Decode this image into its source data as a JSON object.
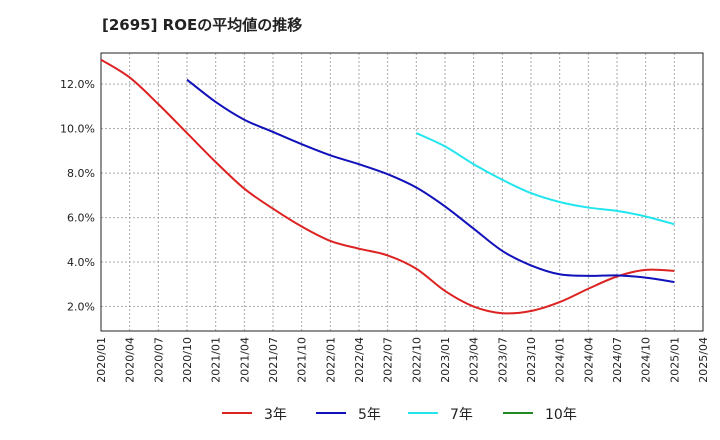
{
  "chart_data": {
    "type": "line",
    "title": "[2695]  ROEの平均値の推移",
    "xlabel": "",
    "ylabel": "",
    "ylim": [
      0.9,
      13.4
    ],
    "grid": true,
    "legend_position": "bottom",
    "y_ticks": [
      {
        "value": 2,
        "label": "2.0%"
      },
      {
        "value": 4,
        "label": "4.0%"
      },
      {
        "value": 6,
        "label": "6.0%"
      },
      {
        "value": 8,
        "label": "8.0%"
      },
      {
        "value": 10,
        "label": "10.0%"
      },
      {
        "value": 12,
        "label": "12.0%"
      }
    ],
    "x_ticks": [
      "2020/01",
      "2020/04",
      "2020/07",
      "2020/10",
      "2021/01",
      "2021/04",
      "2021/07",
      "2021/10",
      "2022/01",
      "2022/04",
      "2022/07",
      "2022/10",
      "2023/01",
      "2023/04",
      "2023/07",
      "2023/10",
      "2024/01",
      "2024/04",
      "2024/07",
      "2024/10",
      "2025/01",
      "2025/04"
    ],
    "series": [
      {
        "name": "3年",
        "color": "#dd2222",
        "points": [
          {
            "x": "2020/01",
            "y": 13.1
          },
          {
            "x": "2020/04",
            "y": 12.3
          },
          {
            "x": "2020/07",
            "y": 11.1
          },
          {
            "x": "2020/10",
            "y": 9.8
          },
          {
            "x": "2021/01",
            "y": 8.5
          },
          {
            "x": "2021/04",
            "y": 7.3
          },
          {
            "x": "2021/07",
            "y": 6.4
          },
          {
            "x": "2021/10",
            "y": 5.6
          },
          {
            "x": "2022/01",
            "y": 4.95
          },
          {
            "x": "2022/04",
            "y": 4.6
          },
          {
            "x": "2022/07",
            "y": 4.3
          },
          {
            "x": "2022/10",
            "y": 3.7
          },
          {
            "x": "2023/01",
            "y": 2.7
          },
          {
            "x": "2023/04",
            "y": 2.0
          },
          {
            "x": "2023/07",
            "y": 1.7
          },
          {
            "x": "2023/10",
            "y": 1.8
          },
          {
            "x": "2024/01",
            "y": 2.2
          },
          {
            "x": "2024/04",
            "y": 2.8
          },
          {
            "x": "2024/07",
            "y": 3.35
          },
          {
            "x": "2024/10",
            "y": 3.65
          },
          {
            "x": "2025/01",
            "y": 3.6
          }
        ]
      },
      {
        "name": "5年",
        "color": "#1111bb",
        "points": [
          {
            "x": "2020/10",
            "y": 12.2
          },
          {
            "x": "2021/01",
            "y": 11.2
          },
          {
            "x": "2021/04",
            "y": 10.4
          },
          {
            "x": "2021/07",
            "y": 9.85
          },
          {
            "x": "2021/10",
            "y": 9.3
          },
          {
            "x": "2022/01",
            "y": 8.8
          },
          {
            "x": "2022/04",
            "y": 8.4
          },
          {
            "x": "2022/07",
            "y": 7.95
          },
          {
            "x": "2022/10",
            "y": 7.35
          },
          {
            "x": "2023/01",
            "y": 6.5
          },
          {
            "x": "2023/04",
            "y": 5.5
          },
          {
            "x": "2023/07",
            "y": 4.5
          },
          {
            "x": "2023/10",
            "y": 3.85
          },
          {
            "x": "2024/01",
            "y": 3.45
          },
          {
            "x": "2024/04",
            "y": 3.38
          },
          {
            "x": "2024/07",
            "y": 3.4
          },
          {
            "x": "2024/10",
            "y": 3.3
          },
          {
            "x": "2025/01",
            "y": 3.1
          }
        ]
      },
      {
        "name": "7年",
        "color": "#22e5ee",
        "points": [
          {
            "x": "2022/10",
            "y": 9.8
          },
          {
            "x": "2023/01",
            "y": 9.2
          },
          {
            "x": "2023/04",
            "y": 8.4
          },
          {
            "x": "2023/07",
            "y": 7.7
          },
          {
            "x": "2023/10",
            "y": 7.1
          },
          {
            "x": "2024/01",
            "y": 6.7
          },
          {
            "x": "2024/04",
            "y": 6.45
          },
          {
            "x": "2024/07",
            "y": 6.3
          },
          {
            "x": "2024/10",
            "y": 6.05
          },
          {
            "x": "2025/01",
            "y": 5.7
          }
        ]
      },
      {
        "name": "10年",
        "color": "#228822",
        "points": []
      }
    ]
  }
}
